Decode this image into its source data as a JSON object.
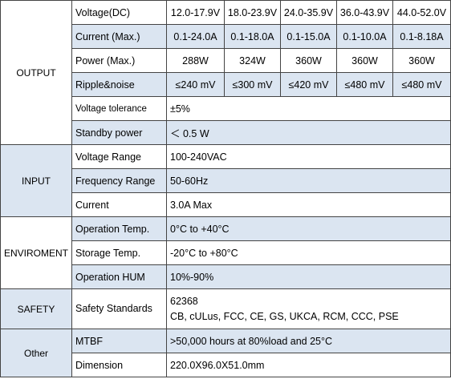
{
  "groups": [
    {
      "label": "OUTPUT",
      "background": "#ffffff",
      "rows": [
        {
          "label": "Voltage(DC)",
          "background": "#ffffff",
          "values": [
            "12.0-17.9V",
            "18.0-23.9V",
            "24.0-35.9V",
            "36.0-43.9V",
            "44.0-52.0V"
          ]
        },
        {
          "label": "Current (Max.)",
          "background": "#dbe5f1",
          "values": [
            "0.1-24.0A",
            "0.1-18.0A",
            "0.1-15.0A",
            "0.1-10.0A",
            "0.1-8.18A"
          ]
        },
        {
          "label": "Power (Max.)",
          "background": "#ffffff",
          "values": [
            "288W",
            "324W",
            "360W",
            "360W",
            "360W"
          ]
        },
        {
          "label": "Ripple&noise",
          "background": "#dbe5f1",
          "values": [
            "≤240 mV",
            "≤300 mV",
            "≤420 mV",
            "≤480 mV",
            "≤480 mV"
          ]
        },
        {
          "label": "Voltage tolerance",
          "background": "#ffffff",
          "values": [
            "±5%"
          ]
        },
        {
          "label": "Standby power",
          "background": "#dbe5f1",
          "values": [
            "＜ 0.5 W"
          ]
        }
      ]
    },
    {
      "label": "INPUT",
      "background": "#dbe5f1",
      "rows": [
        {
          "label": "Voltage Range",
          "background": "#ffffff",
          "values": [
            "100-240VAC"
          ]
        },
        {
          "label": "Frequency Range",
          "background": "#dbe5f1",
          "values": [
            "50-60Hz"
          ]
        },
        {
          "label": "Current",
          "background": "#ffffff",
          "values": [
            "3.0A Max"
          ]
        }
      ]
    },
    {
      "label": "ENVIROMENT",
      "background": "#ffffff",
      "rows": [
        {
          "label": "Operation Temp.",
          "background": "#dbe5f1",
          "values": [
            "0°C to +40°C"
          ]
        },
        {
          "label": "Storage Temp.",
          "background": "#ffffff",
          "values": [
            "-20°C to +80°C"
          ]
        },
        {
          "label": "Operation HUM",
          "background": "#dbe5f1",
          "values": [
            "10%-90%"
          ]
        }
      ]
    },
    {
      "label": "SAFETY",
      "background": "#dbe5f1",
      "rows": [
        {
          "label": "Safety Standards",
          "background": "#ffffff",
          "values": [
            "62368",
            "CB, cULus, FCC, CE, GS, UKCA, RCM, CCC, PSE"
          ]
        }
      ]
    },
    {
      "label": "Other",
      "background": "#dbe5f1",
      "rows": [
        {
          "label": "MTBF",
          "background": "#dbe5f1",
          "values": [
            ">50,000 hours at 80%load and 25°C"
          ]
        },
        {
          "label": "Dimension",
          "background": "#ffffff",
          "values": [
            "220.0X96.0X51.0mm"
          ]
        }
      ]
    }
  ]
}
